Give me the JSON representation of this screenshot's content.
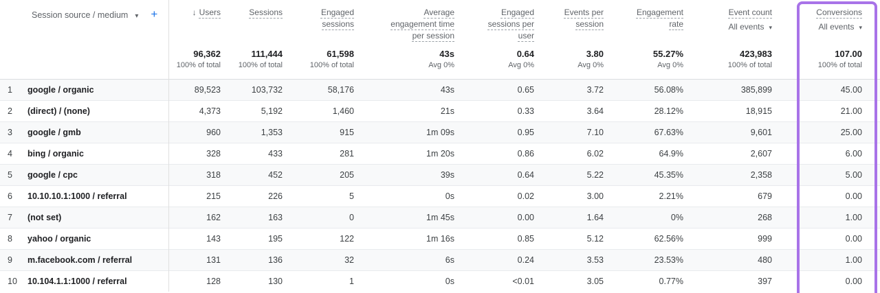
{
  "table": {
    "dimension_header": {
      "label": "Session source / medium",
      "caret_icon": "▾",
      "add_icon": "+"
    },
    "icons": {
      "sort_descending": "↓",
      "dropdown_caret": "▾"
    },
    "columns": [
      {
        "key": "users",
        "label": "Users",
        "sorted": true,
        "total": "96,362",
        "total_sub": "100% of total"
      },
      {
        "key": "sessions",
        "label": "Sessions",
        "total": "111,444",
        "total_sub": "100% of total"
      },
      {
        "key": "engaged_sessions",
        "label": "Engaged sessions",
        "total": "61,598",
        "total_sub": "100% of total"
      },
      {
        "key": "avg_engagement_time",
        "label": "Average engagement time per session",
        "total": "43s",
        "total_sub": "Avg 0%"
      },
      {
        "key": "engaged_sessions_per_user",
        "label": "Engaged sessions per user",
        "total": "0.64",
        "total_sub": "Avg 0%"
      },
      {
        "key": "events_per_session",
        "label": "Events per session",
        "total": "3.80",
        "total_sub": "Avg 0%"
      },
      {
        "key": "engagement_rate",
        "label": "Engagement rate",
        "total": "55.27%",
        "total_sub": "Avg 0%"
      },
      {
        "key": "event_count",
        "label": "Event count",
        "filter": "All events",
        "total": "423,983",
        "total_sub": "100% of total"
      },
      {
        "key": "conversions",
        "label": "Conversions",
        "filter": "All events",
        "total": "107.00",
        "total_sub": "100% of total",
        "highlighted": true
      }
    ],
    "rows": [
      {
        "rank": "1",
        "name": "google / organic",
        "values": [
          "89,523",
          "103,732",
          "58,176",
          "43s",
          "0.65",
          "3.72",
          "56.08%",
          "385,899",
          "45.00"
        ]
      },
      {
        "rank": "2",
        "name": "(direct) / (none)",
        "values": [
          "4,373",
          "5,192",
          "1,460",
          "21s",
          "0.33",
          "3.64",
          "28.12%",
          "18,915",
          "21.00"
        ]
      },
      {
        "rank": "3",
        "name": "google / gmb",
        "values": [
          "960",
          "1,353",
          "915",
          "1m 09s",
          "0.95",
          "7.10",
          "67.63%",
          "9,601",
          "25.00"
        ]
      },
      {
        "rank": "4",
        "name": "bing / organic",
        "values": [
          "328",
          "433",
          "281",
          "1m 20s",
          "0.86",
          "6.02",
          "64.9%",
          "2,607",
          "6.00"
        ]
      },
      {
        "rank": "5",
        "name": "google / cpc",
        "values": [
          "318",
          "452",
          "205",
          "39s",
          "0.64",
          "5.22",
          "45.35%",
          "2,358",
          "5.00"
        ]
      },
      {
        "rank": "6",
        "name": "10.10.10.1:1000 / referral",
        "values": [
          "215",
          "226",
          "5",
          "0s",
          "0.02",
          "3.00",
          "2.21%",
          "679",
          "0.00"
        ]
      },
      {
        "rank": "7",
        "name": "(not set)",
        "values": [
          "162",
          "163",
          "0",
          "1m 45s",
          "0.00",
          "1.64",
          "0%",
          "268",
          "1.00"
        ]
      },
      {
        "rank": "8",
        "name": "yahoo / organic",
        "values": [
          "143",
          "195",
          "122",
          "1m 16s",
          "0.85",
          "5.12",
          "62.56%",
          "999",
          "0.00"
        ]
      },
      {
        "rank": "9",
        "name": "m.facebook.com / referral",
        "values": [
          "131",
          "136",
          "32",
          "6s",
          "0.24",
          "3.53",
          "23.53%",
          "480",
          "1.00"
        ]
      },
      {
        "rank": "10",
        "name": "10.104.1.1:1000 / referral",
        "values": [
          "128",
          "130",
          "1",
          "0s",
          "<0.01",
          "3.05",
          "0.77%",
          "397",
          "0.00"
        ]
      }
    ],
    "colors": {
      "accent_blue": "#1a73e8",
      "highlight_purple": "#a873e8",
      "text_primary": "#202124",
      "text_secondary": "#5f6368",
      "row_stripe": "#f8f9fa",
      "border": "#e0e0e0"
    }
  }
}
